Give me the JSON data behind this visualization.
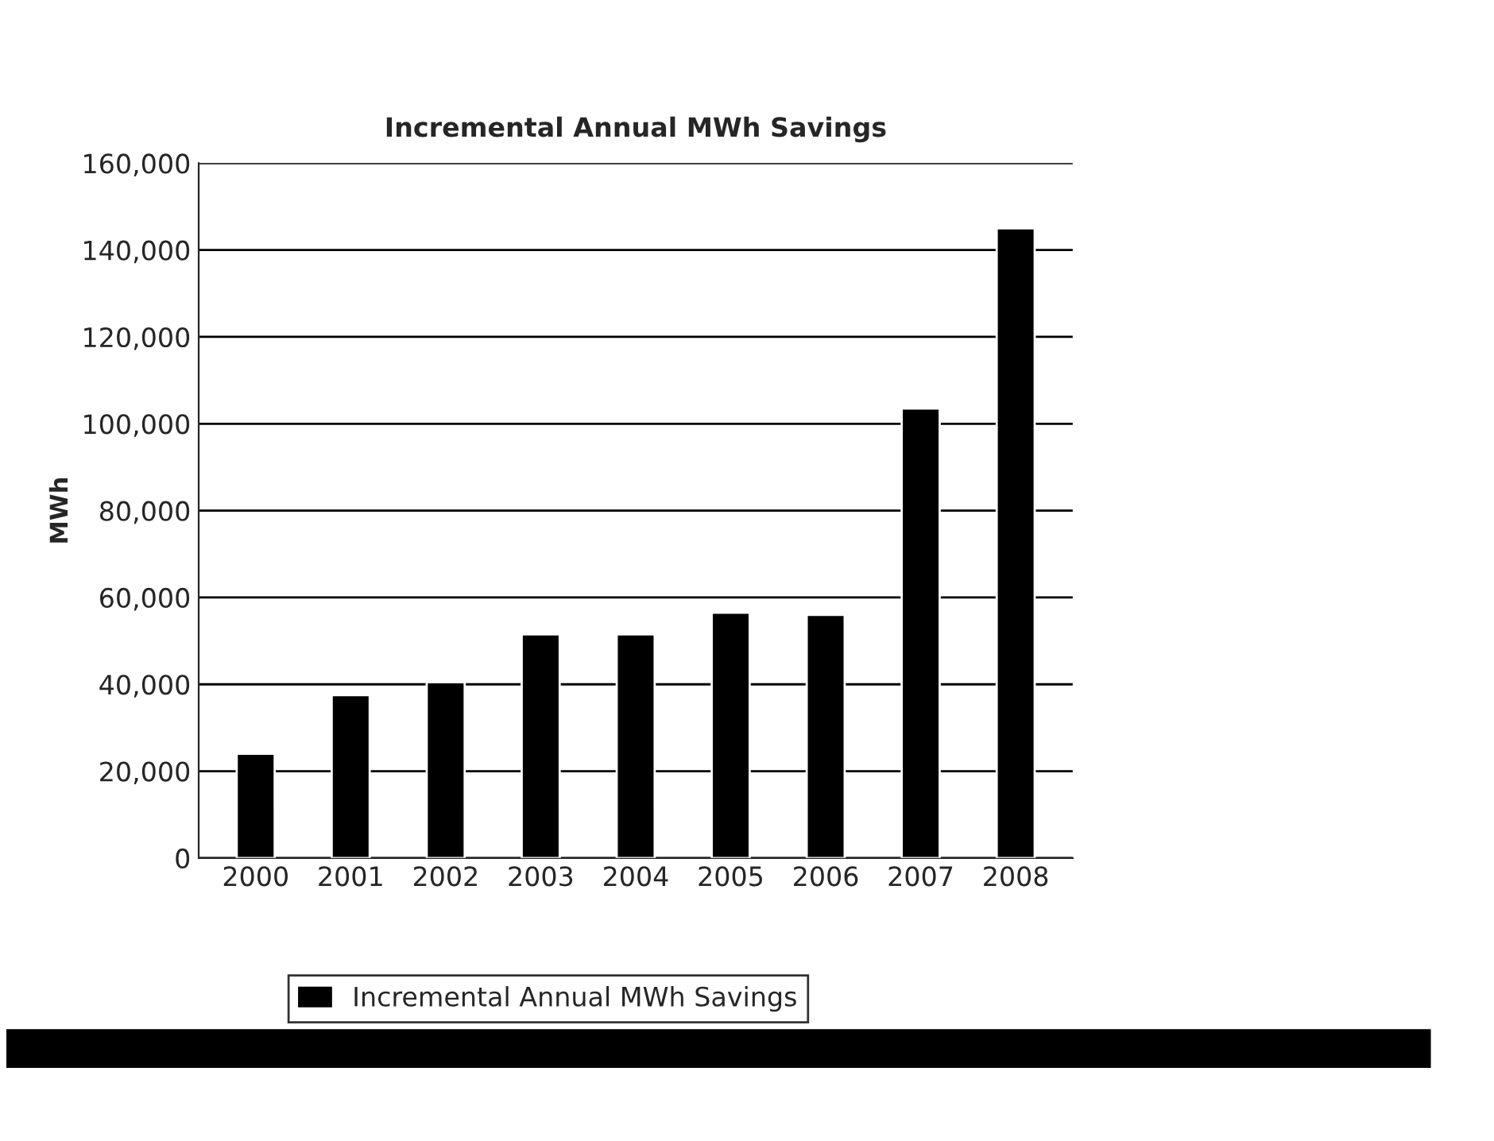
{
  "chart_data": {
    "type": "bar",
    "title": "Incremental Annual MWh Savings",
    "ylabel": "MWh",
    "categories": [
      "2000",
      "2001",
      "2002",
      "2003",
      "2004",
      "2005",
      "2006",
      "2007",
      "2008"
    ],
    "series": [
      {
        "name": "Incremental Annual MWh Savings",
        "color": "#000000",
        "values": [
          24000,
          37500,
          40500,
          51500,
          51500,
          56500,
          56000,
          103500,
          145000
        ]
      }
    ],
    "ylim": [
      0,
      160000
    ],
    "yticks": [
      {
        "value": 0,
        "label": "0"
      },
      {
        "value": 20000,
        "label": "20,000"
      },
      {
        "value": 40000,
        "label": "40,000"
      },
      {
        "value": 60000,
        "label": "60,000"
      },
      {
        "value": 80000,
        "label": "80,000"
      },
      {
        "value": 100000,
        "label": "100,000"
      },
      {
        "value": 120000,
        "label": "120,000"
      },
      {
        "value": 140000,
        "label": "140,000"
      },
      {
        "value": 160000,
        "label": "160,000"
      }
    ],
    "grid": "y",
    "legend": "bottom"
  }
}
